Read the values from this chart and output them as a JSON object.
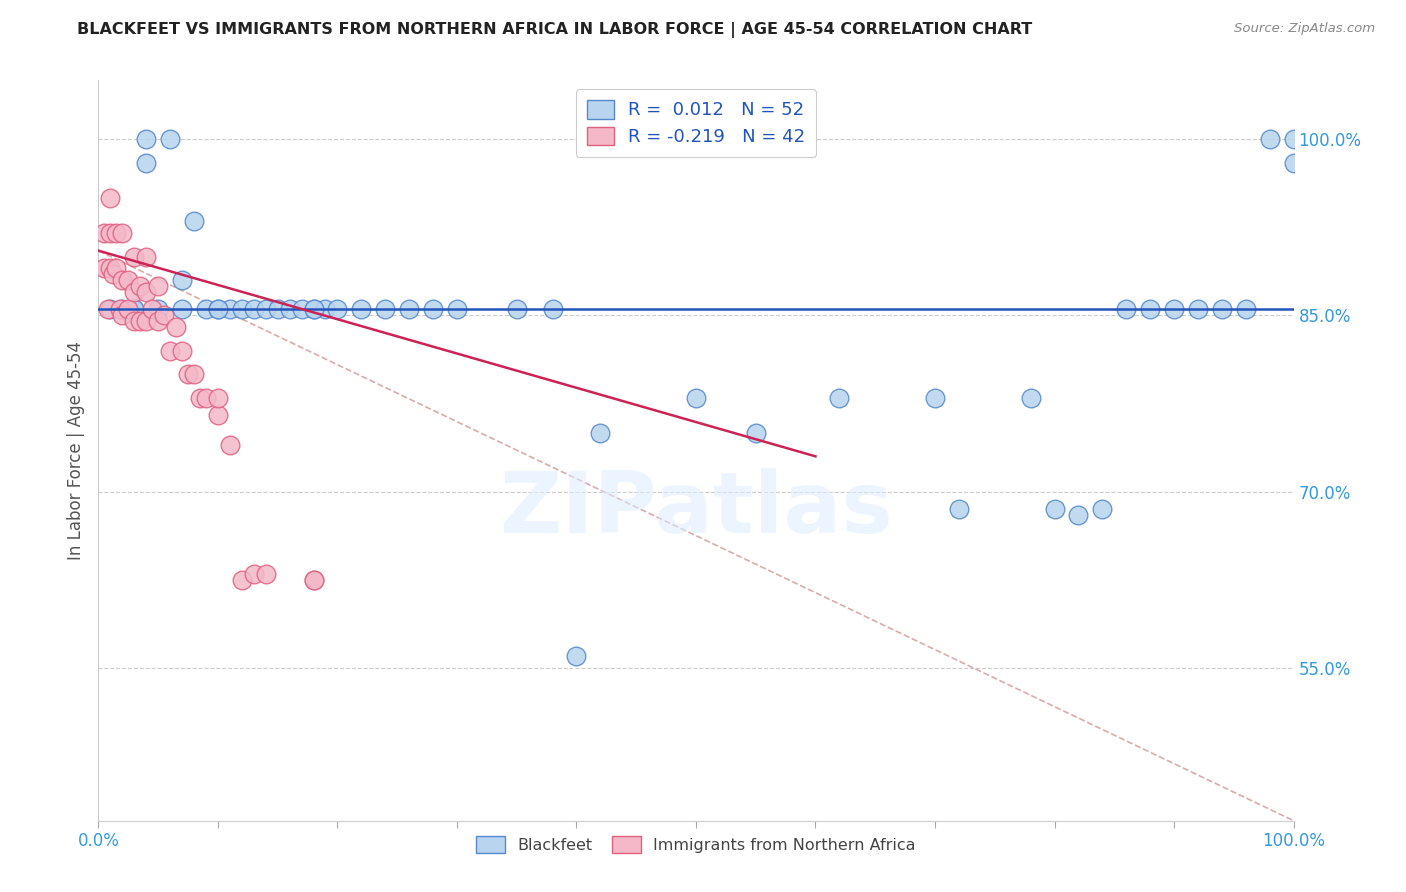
{
  "title": "BLACKFEET VS IMMIGRANTS FROM NORTHERN AFRICA IN LABOR FORCE | AGE 45-54 CORRELATION CHART",
  "source": "Source: ZipAtlas.com",
  "ylabel": "In Labor Force | Age 45-54",
  "blue_R": 0.012,
  "blue_N": 52,
  "pink_R": -0.219,
  "pink_N": 42,
  "legend_label_blue": "Blackfeet",
  "legend_label_pink": "Immigrants from Northern Africa",
  "blue_scatter_x": [
    0.01,
    0.02,
    0.03,
    0.04,
    0.04,
    0.05,
    0.06,
    0.07,
    0.08,
    0.09,
    0.1,
    0.11,
    0.12,
    0.13,
    0.14,
    0.15,
    0.16,
    0.17,
    0.18,
    0.19,
    0.2,
    0.22,
    0.24,
    0.26,
    0.28,
    0.3,
    0.35,
    0.38,
    0.42,
    0.5,
    0.55,
    0.62,
    0.7,
    0.72,
    0.8,
    0.82,
    0.84,
    0.86,
    0.88,
    0.9,
    0.92,
    0.94,
    0.96,
    0.98,
    1.0,
    1.0,
    0.03,
    0.07,
    0.1,
    0.18,
    0.4,
    0.78
  ],
  "blue_scatter_y": [
    0.855,
    0.855,
    0.855,
    0.98,
    1.0,
    0.855,
    1.0,
    0.855,
    0.93,
    0.855,
    0.855,
    0.855,
    0.855,
    0.855,
    0.855,
    0.855,
    0.855,
    0.855,
    0.855,
    0.855,
    0.855,
    0.855,
    0.855,
    0.855,
    0.855,
    0.855,
    0.855,
    0.855,
    0.75,
    0.78,
    0.75,
    0.78,
    0.78,
    0.685,
    0.685,
    0.68,
    0.685,
    0.855,
    0.855,
    0.855,
    0.855,
    0.855,
    0.855,
    1.0,
    0.98,
    1.0,
    0.855,
    0.88,
    0.855,
    0.855,
    0.56,
    0.78
  ],
  "pink_scatter_x": [
    0.005,
    0.005,
    0.008,
    0.01,
    0.01,
    0.01,
    0.012,
    0.015,
    0.015,
    0.018,
    0.02,
    0.02,
    0.02,
    0.025,
    0.025,
    0.03,
    0.03,
    0.03,
    0.035,
    0.035,
    0.04,
    0.04,
    0.04,
    0.045,
    0.05,
    0.05,
    0.055,
    0.06,
    0.065,
    0.07,
    0.075,
    0.08,
    0.085,
    0.09,
    0.1,
    0.1,
    0.11,
    0.12,
    0.13,
    0.14,
    0.18,
    0.18
  ],
  "pink_scatter_y": [
    0.89,
    0.92,
    0.855,
    0.89,
    0.92,
    0.95,
    0.885,
    0.89,
    0.92,
    0.855,
    0.85,
    0.88,
    0.92,
    0.855,
    0.88,
    0.845,
    0.87,
    0.9,
    0.845,
    0.875,
    0.845,
    0.87,
    0.9,
    0.855,
    0.845,
    0.875,
    0.85,
    0.82,
    0.84,
    0.82,
    0.8,
    0.8,
    0.78,
    0.78,
    0.765,
    0.78,
    0.74,
    0.625,
    0.63,
    0.63,
    0.625,
    0.625
  ],
  "blue_line_x": [
    0.0,
    1.0
  ],
  "blue_line_y": [
    0.855,
    0.855
  ],
  "pink_line_x": [
    0.0,
    0.6
  ],
  "pink_line_y": [
    0.905,
    0.73
  ],
  "dashed_line_x": [
    0.0,
    1.0
  ],
  "dashed_line_y": [
    0.905,
    0.42
  ],
  "xlim": [
    0.0,
    1.0
  ],
  "ylim": [
    0.42,
    1.05
  ],
  "y_tick_positions": [
    0.55,
    0.7,
    0.85,
    1.0
  ],
  "y_tick_labels": [
    "55.0%",
    "70.0%",
    "85.0%",
    "100.0%"
  ],
  "x_tick_positions": [
    0.0,
    0.1,
    0.2,
    0.3,
    0.4,
    0.5,
    0.6,
    0.7,
    0.8,
    0.9,
    1.0
  ],
  "background_color": "#ffffff",
  "blue_color": "#b8d4ee",
  "pink_color": "#f4b8c8",
  "blue_edge_color": "#5588cc",
  "pink_edge_color": "#e06080",
  "blue_line_color": "#2255bb",
  "pink_line_color": "#cc2255",
  "dashed_line_color": "#ddaaaa",
  "title_color": "#222222",
  "source_color": "#888888",
  "axis_label_color": "#555555",
  "tick_color": "#3399dd",
  "grid_color": "#cccccc",
  "grid_style": "--",
  "marker_size": 180
}
